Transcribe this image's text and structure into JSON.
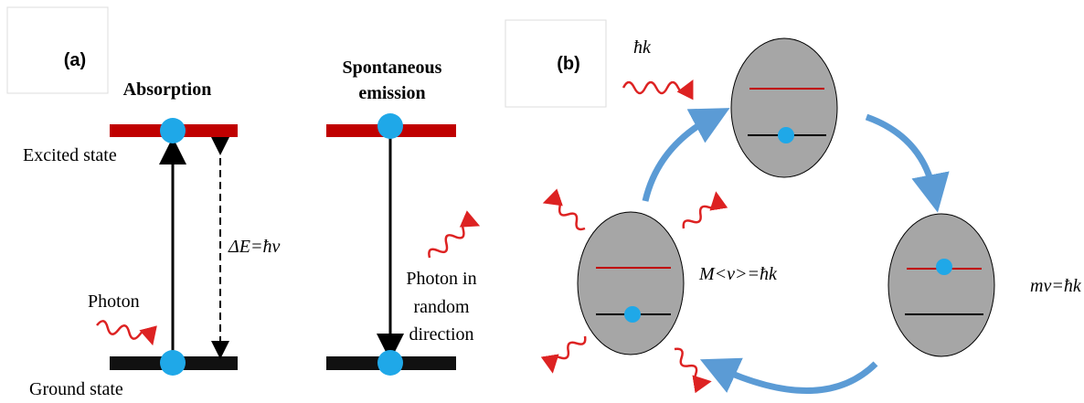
{
  "panel_a": {
    "label": "(a)",
    "absorption_title": "Absorption",
    "emission_title": [
      "Spontaneous",
      "emission"
    ],
    "excited_label": "Excited state",
    "ground_label": "Ground state",
    "photon_label": "Photon",
    "energy_label": "ΔE=ħν",
    "emitted_photon_label": [
      "Photon in",
      "random",
      "direction"
    ]
  },
  "panel_b": {
    "label": "(b)",
    "momentum_label": "ħk",
    "atom_momentum_label": "M<ν>=ħk",
    "recoil_label": "mν=ħk"
  }
}
